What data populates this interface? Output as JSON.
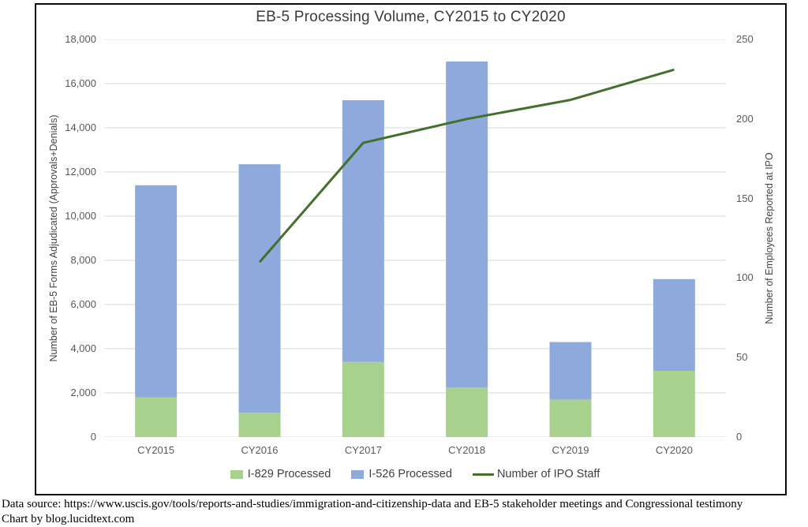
{
  "chart_data": {
    "type": "bar",
    "title": "EB-5 Processing Volume, CY2015 to CY2020",
    "categories": [
      "CY2015",
      "CY2016",
      "CY2017",
      "CY2018",
      "CY2019",
      "CY2020"
    ],
    "series": [
      {
        "name": "I-829 Processed",
        "type": "bar",
        "stacked": true,
        "color": "#A9D18E",
        "values": [
          1800,
          1100,
          3400,
          2250,
          1700,
          3000
        ]
      },
      {
        "name": "I-526 Processed",
        "type": "bar",
        "stacked": true,
        "color": "#8EA9DB",
        "values": [
          9600,
          11250,
          11850,
          14750,
          2600,
          4150
        ]
      },
      {
        "name": "Number of IPO Staff",
        "type": "line",
        "axis": "right",
        "color": "#44702C",
        "values": [
          null,
          110,
          185,
          200,
          212,
          231
        ]
      }
    ],
    "stacked_totals": [
      11400,
      12350,
      15250,
      17000,
      4300,
      7150
    ],
    "left_axis": {
      "title": "Number of EB-5 Forms Adjudicated (Approvals+Denials)",
      "min": 0,
      "max": 18000,
      "tick_step": 2000,
      "ticks": [
        "0",
        "2,000",
        "4,000",
        "6,000",
        "8,000",
        "10,000",
        "12,000",
        "14,000",
        "16,000",
        "18,000"
      ]
    },
    "right_axis": {
      "title": "Number of Employees Reported at IPO",
      "min": 0,
      "max": 250,
      "tick_step": 50,
      "ticks": [
        "0",
        "50",
        "100",
        "150",
        "200",
        "250"
      ]
    },
    "grid": true,
    "legend_position": "bottom",
    "colors": {
      "gridline": "#D9D9D9",
      "tick_text": "#595959",
      "title_text": "#3B3B3B",
      "frame_border": "#0A0A0A"
    }
  },
  "footer": {
    "lines": [
      "Data source: https://www.uscis.gov/tools/reports-and-studies/immigration-and-citizenship-data and EB-5 stakeholder meetings and Congressional testimony",
      "Chart by blog.lucidtext.com"
    ]
  }
}
